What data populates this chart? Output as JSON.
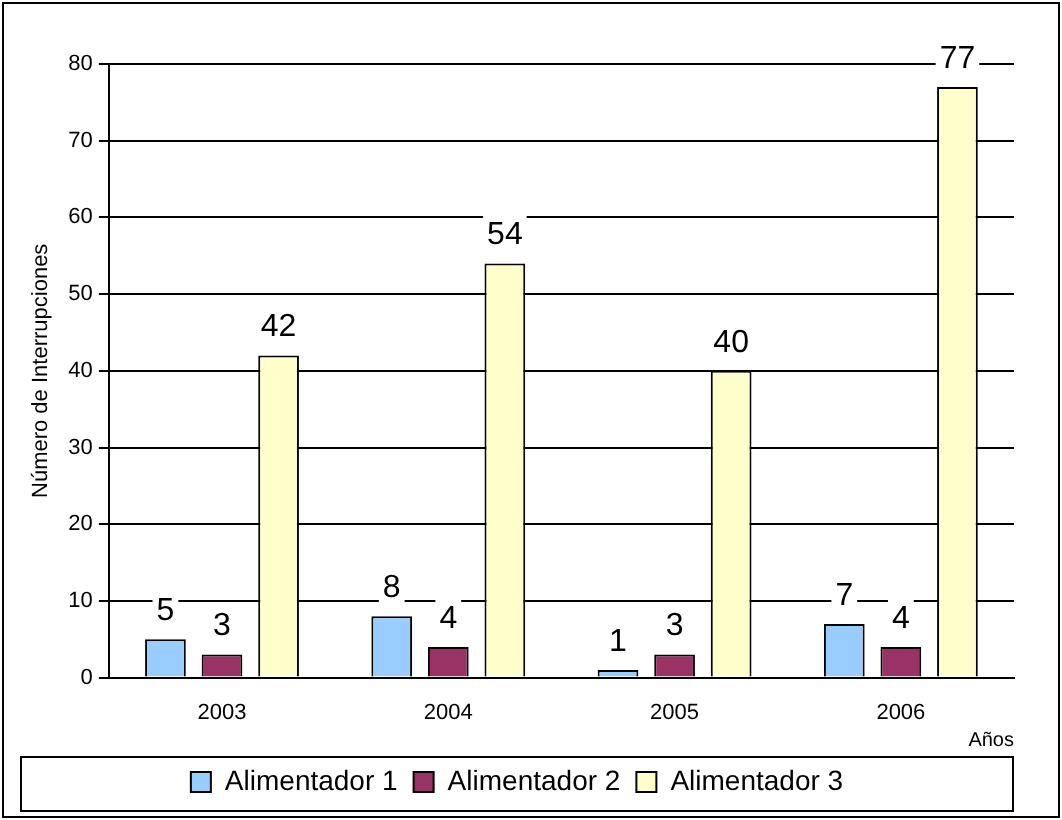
{
  "chart_data": {
    "type": "bar",
    "xlabel": "Años",
    "ylabel": "Número de Interrupciones",
    "categories": [
      "2003",
      "2004",
      "2005",
      "2006"
    ],
    "series": [
      {
        "name": "Alimentador 1",
        "color": "#99ccff",
        "values": [
          5,
          8,
          1,
          7
        ]
      },
      {
        "name": "Alimentador 2",
        "color": "#993366",
        "values": [
          3,
          4,
          3,
          4
        ]
      },
      {
        "name": "Alimentador 3",
        "color": "#ffffcc",
        "values": [
          42,
          54,
          40,
          77
        ]
      }
    ],
    "ylim": [
      0,
      80
    ],
    "yticks": [
      0,
      10,
      20,
      30,
      40,
      50,
      60,
      70,
      80
    ],
    "grid": "y",
    "legend": "bottom",
    "data_labels": true
  }
}
